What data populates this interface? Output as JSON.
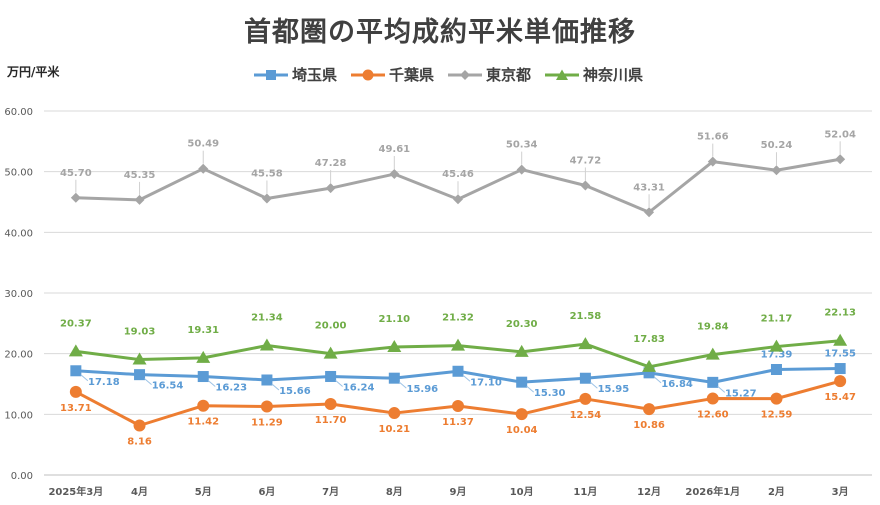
{
  "colors": {
    "saitama": "#5B9BD5",
    "chiba": "#ED7D31",
    "tokyo": "#A5A5A5",
    "kanagawa": "#70AD47"
  },
  "chart_data": {
    "type": "line",
    "title": "首都圏の平均成約平米単価推移",
    "ylabel": "万円/平米",
    "xlabel": "",
    "ylim": [
      0,
      60
    ],
    "yticks": [
      "0.00",
      "10.00",
      "20.00",
      "30.00",
      "40.00",
      "50.00",
      "60.00"
    ],
    "grid": true,
    "legend_position": "top",
    "categories": [
      "2025年3月",
      "4月",
      "5月",
      "6月",
      "7月",
      "8月",
      "9月",
      "10月",
      "11月",
      "12月",
      "2026年1月",
      "2月",
      "3月"
    ],
    "series": [
      {
        "key": "saitama",
        "name": "埼玉県",
        "marker": "square",
        "values": [
          17.18,
          16.54,
          16.23,
          15.66,
          16.24,
          15.96,
          17.1,
          15.3,
          15.95,
          16.84,
          15.27,
          17.39,
          17.55
        ]
      },
      {
        "key": "chiba",
        "name": "千葉県",
        "marker": "circle",
        "values": [
          13.71,
          8.16,
          11.42,
          11.29,
          11.7,
          10.21,
          11.37,
          10.04,
          12.54,
          10.86,
          12.6,
          12.59,
          15.47
        ]
      },
      {
        "key": "tokyo",
        "name": "東京都",
        "marker": "diamond",
        "values": [
          45.7,
          45.35,
          50.49,
          45.58,
          47.28,
          49.61,
          45.46,
          50.34,
          47.72,
          43.31,
          51.66,
          50.24,
          52.04
        ]
      },
      {
        "key": "kanagawa",
        "name": "神奈川県",
        "marker": "triangle",
        "values": [
          20.37,
          19.03,
          19.31,
          21.34,
          20.0,
          21.1,
          21.32,
          20.3,
          21.58,
          17.83,
          19.84,
          21.17,
          22.13
        ]
      }
    ]
  }
}
